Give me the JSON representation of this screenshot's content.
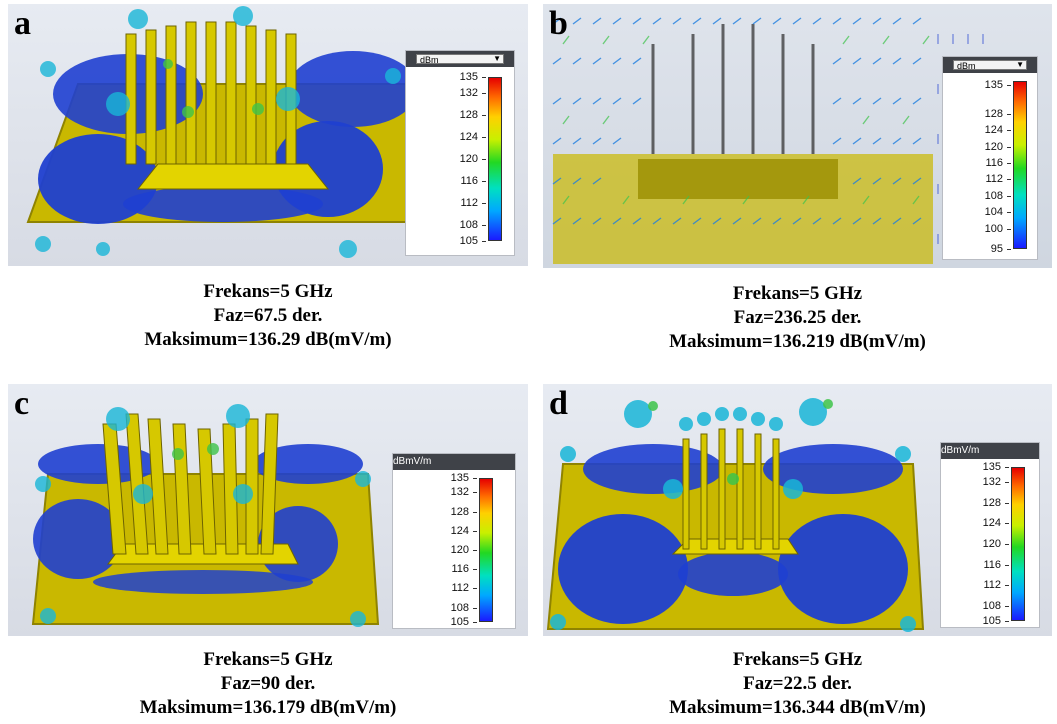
{
  "panels": [
    {
      "letter": "a",
      "legend": {
        "unit": "dBm",
        "style": "dropdown",
        "ticks": [
          135,
          132,
          128,
          124,
          120,
          116,
          112,
          108,
          105
        ],
        "min": 105,
        "max": 135
      },
      "caption": {
        "frequency": "Frekans=5 GHz",
        "phase": "Faz=67.5 der.",
        "maximum": "Maksimum=136.29 dB(mV/m)"
      }
    },
    {
      "letter": "b",
      "legend": {
        "unit": "dBm",
        "style": "dropdown",
        "ticks": [
          135,
          128,
          124,
          120,
          116,
          112,
          108,
          104,
          100,
          95
        ],
        "min": 95,
        "max": 136
      },
      "caption": {
        "frequency": "Frekans=5 GHz",
        "phase": "Faz=236.25 der.",
        "maximum": "Maksimum=136.219 dB(mV/m)"
      }
    },
    {
      "letter": "c",
      "legend": {
        "unit": "dBmV/m",
        "style": "plain",
        "ticks": [
          135,
          132,
          128,
          124,
          120,
          116,
          112,
          108,
          105
        ],
        "min": 105,
        "max": 135
      },
      "caption": {
        "frequency": "Frekans=5 GHz",
        "phase": "Faz=90 der.",
        "maximum": "Maksimum=136.179 dB(mV/m)"
      }
    },
    {
      "letter": "d",
      "legend": {
        "unit": "dBmV/m",
        "style": "plain",
        "ticks": [
          135,
          132,
          128,
          124,
          120,
          116,
          112,
          108,
          105
        ],
        "min": 105,
        "max": 135
      },
      "caption": {
        "frequency": "Frekans=5 GHz",
        "phase": "Faz=22.5 der.",
        "maximum": "Maksimum=136.344 dB(mV/m)"
      }
    }
  ],
  "colors": {
    "substrate": "#c9b800",
    "substrate_edge": "#8f8300",
    "field_blue": "#1f3fd0",
    "field_cyan": "#19b6d8",
    "field_green": "#3ec44a"
  }
}
